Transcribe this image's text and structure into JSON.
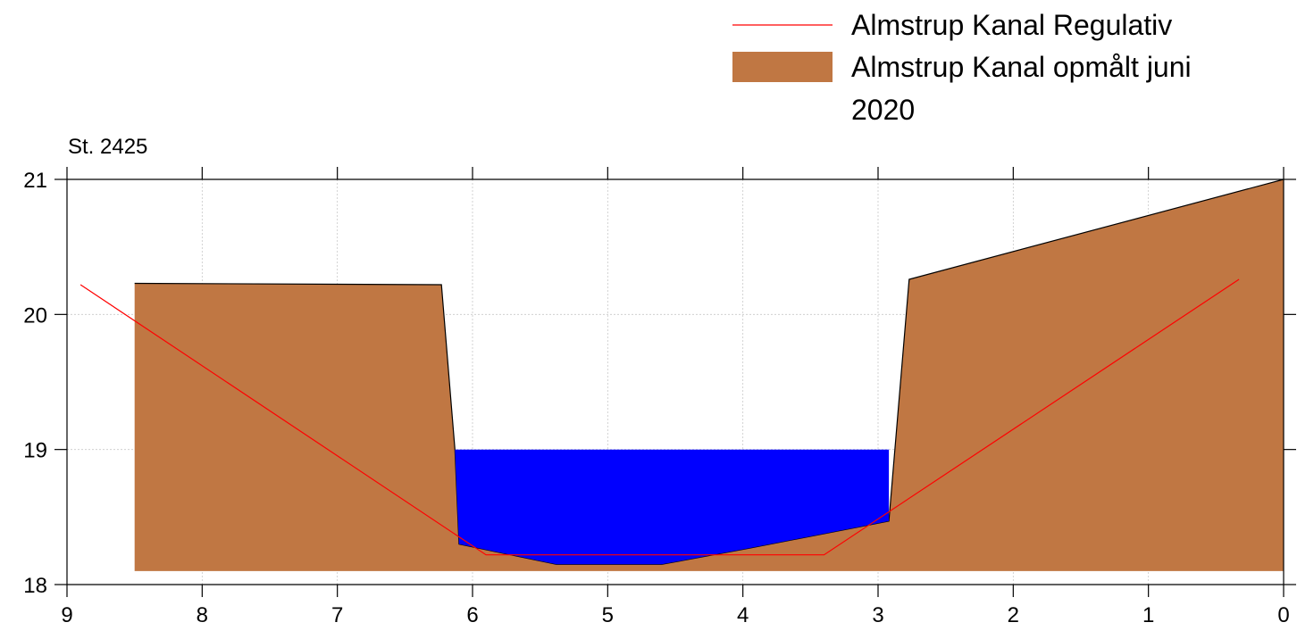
{
  "chart_data": {
    "type": "area",
    "station_label": "St. 2425",
    "xlabel": "",
    "ylabel": "",
    "xlim": [
      9,
      0
    ],
    "ylim": [
      18,
      21
    ],
    "x_reversed": true,
    "xticks": [
      "9",
      "8",
      "7",
      "6",
      "5",
      "4",
      "3",
      "2",
      "1",
      "0"
    ],
    "yticks": [
      "18",
      "19",
      "20",
      "21"
    ],
    "grid": true,
    "legend_position": "top-right",
    "series": [
      {
        "name": "Almstrup Kanal Regulativ",
        "kind": "line",
        "color": "#ff0000",
        "x": [
          8.9,
          5.9,
          3.4,
          0.33
        ],
        "y": [
          20.22,
          18.22,
          18.22,
          20.26
        ]
      },
      {
        "name": "Almstrup Kanal opmålt juni 2020",
        "kind": "area",
        "color": "#c07743",
        "x": [
          8.5,
          6.23,
          6.13,
          6.1,
          5.38,
          4.6,
          3.95,
          2.92,
          2.77,
          0.0
        ],
        "y": [
          20.23,
          20.22,
          19.0,
          18.3,
          18.15,
          18.15,
          18.27,
          18.47,
          20.26,
          21.0
        ],
        "base": 18.1
      },
      {
        "kind": "water",
        "color": "#0000ff",
        "level": 19.0
      }
    ]
  }
}
